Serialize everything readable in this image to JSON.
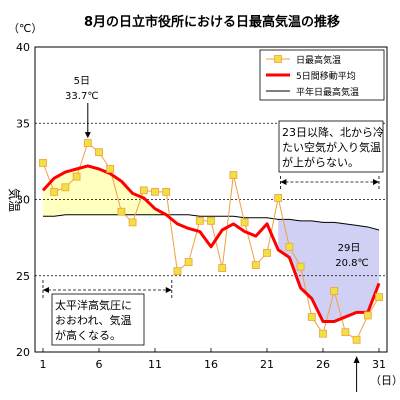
{
  "chart_data": {
    "type": "line",
    "title": "8月の日立市役所における日最高気温の推移",
    "ylabel": "気温",
    "yunit": "（℃）",
    "xunit": "（日）",
    "ylim": [
      20,
      40
    ],
    "xlim": [
      1,
      31
    ],
    "yticks": [
      20,
      25,
      30,
      35,
      40
    ],
    "xticks": [
      1,
      6,
      11,
      16,
      21,
      26,
      31
    ],
    "grid": true,
    "legend_position": "top-right",
    "x": [
      1,
      2,
      3,
      4,
      5,
      6,
      7,
      8,
      9,
      10,
      11,
      12,
      13,
      14,
      15,
      16,
      17,
      18,
      19,
      20,
      21,
      22,
      23,
      24,
      25,
      26,
      27,
      28,
      29,
      30,
      31
    ],
    "series": [
      {
        "name": "日最高気温",
        "color": "#f0a040",
        "values": [
          32.4,
          30.5,
          30.8,
          31.5,
          33.7,
          33.1,
          32.0,
          29.2,
          28.5,
          30.6,
          30.5,
          30.5,
          25.3,
          25.9,
          28.6,
          28.6,
          25.5,
          31.6,
          28.5,
          25.7,
          26.5,
          30.1,
          26.9,
          25.6,
          22.3,
          21.2,
          24.0,
          21.3,
          20.8,
          22.4,
          23.6
        ]
      },
      {
        "name": "5日間移動平均",
        "color": "#ff0000",
        "values": [
          30.6,
          31.4,
          31.8,
          32.0,
          32.2,
          32.0,
          31.7,
          31.2,
          30.4,
          30.1,
          29.4,
          29.0,
          28.4,
          28.1,
          27.9,
          26.9,
          28.0,
          28.4,
          27.9,
          27.6,
          28.4,
          26.7,
          26.2,
          24.2,
          23.5,
          22.0,
          22.0,
          22.3,
          22.6,
          22.6,
          24.5
        ]
      },
      {
        "name": "平年日最高気温",
        "color": "#000000",
        "values": [
          28.9,
          28.9,
          29.0,
          29.0,
          29.0,
          29.0,
          29.0,
          29.0,
          29.0,
          29.0,
          29.0,
          29.0,
          29.0,
          29.0,
          28.9,
          28.9,
          28.9,
          28.9,
          28.8,
          28.8,
          28.8,
          28.7,
          28.7,
          28.6,
          28.6,
          28.5,
          28.5,
          28.4,
          28.3,
          28.2,
          28.0
        ]
      }
    ],
    "annotations": {
      "peak": {
        "day_label": "5日",
        "value_label": "33.7℃"
      },
      "low": {
        "day_label": "29日",
        "value_label": "20.8℃"
      },
      "note_early": [
        "太平洋高気圧に",
        "おおわれ、気温",
        "が高くなる。"
      ],
      "note_late": [
        "23日以降、北から冷",
        "たい空気が入り気温",
        "が上がらない。"
      ]
    },
    "colors": {
      "warm_fill": "#ffffc0",
      "cool_fill": "#d0d0f4",
      "moving_avg": "#ff0000",
      "daily": "#f0a040",
      "daily_marker": "#f0e040",
      "normal": "#000000",
      "grid": "#000000"
    }
  }
}
